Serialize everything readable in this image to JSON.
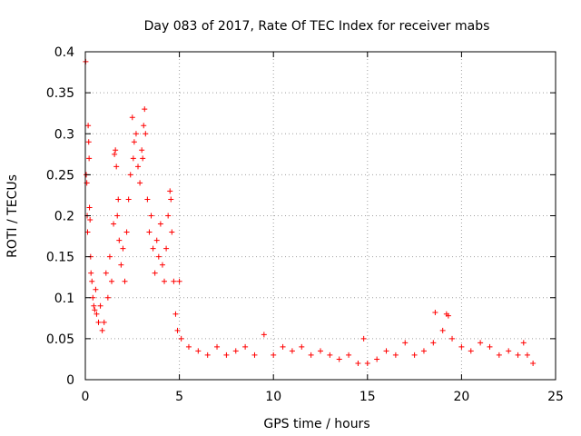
{
  "chart_data": {
    "type": "scatter",
    "title": "Day 083 of 2017, Rate Of TEC Index for receiver mabs",
    "xlabel": "GPS time / hours",
    "ylabel": "ROTI / TECUs",
    "xlim": [
      0,
      25
    ],
    "ylim": [
      0,
      0.4
    ],
    "xticks": [
      "0",
      "5",
      "10",
      "15",
      "20",
      "25"
    ],
    "yticks": [
      "0",
      "0.05",
      "0.1",
      "0.15",
      "0.2",
      "0.25",
      "0.3",
      "0.35",
      "0.4"
    ],
    "grid": true,
    "marker": "+",
    "color": "#ff0000",
    "points": [
      [
        0.02,
        0.388
      ],
      [
        0.05,
        0.25
      ],
      [
        0.08,
        0.24
      ],
      [
        0.1,
        0.2
      ],
      [
        0.12,
        0.18
      ],
      [
        0.15,
        0.31
      ],
      [
        0.18,
        0.29
      ],
      [
        0.2,
        0.27
      ],
      [
        0.22,
        0.21
      ],
      [
        0.25,
        0.195
      ],
      [
        0.28,
        0.15
      ],
      [
        0.3,
        0.13
      ],
      [
        0.35,
        0.12
      ],
      [
        0.4,
        0.1
      ],
      [
        0.45,
        0.09
      ],
      [
        0.5,
        0.085
      ],
      [
        0.55,
        0.11
      ],
      [
        0.6,
        0.08
      ],
      [
        0.7,
        0.07
      ],
      [
        0.8,
        0.09
      ],
      [
        0.9,
        0.06
      ],
      [
        1.0,
        0.07
      ],
      [
        1.1,
        0.13
      ],
      [
        1.2,
        0.1
      ],
      [
        1.3,
        0.15
      ],
      [
        1.4,
        0.12
      ],
      [
        1.5,
        0.19
      ],
      [
        1.55,
        0.275
      ],
      [
        1.6,
        0.28
      ],
      [
        1.65,
        0.26
      ],
      [
        1.7,
        0.2
      ],
      [
        1.75,
        0.22
      ],
      [
        1.8,
        0.17
      ],
      [
        1.9,
        0.14
      ],
      [
        2.0,
        0.16
      ],
      [
        2.1,
        0.12
      ],
      [
        2.2,
        0.18
      ],
      [
        2.3,
        0.22
      ],
      [
        2.4,
        0.25
      ],
      [
        2.5,
        0.32
      ],
      [
        2.55,
        0.27
      ],
      [
        2.6,
        0.29
      ],
      [
        2.7,
        0.3
      ],
      [
        2.8,
        0.26
      ],
      [
        2.9,
        0.24
      ],
      [
        3.0,
        0.28
      ],
      [
        3.05,
        0.27
      ],
      [
        3.1,
        0.31
      ],
      [
        3.15,
        0.33
      ],
      [
        3.2,
        0.3
      ],
      [
        3.3,
        0.22
      ],
      [
        3.4,
        0.18
      ],
      [
        3.5,
        0.2
      ],
      [
        3.6,
        0.16
      ],
      [
        3.7,
        0.13
      ],
      [
        3.8,
        0.17
      ],
      [
        3.9,
        0.15
      ],
      [
        4.0,
        0.19
      ],
      [
        4.1,
        0.14
      ],
      [
        4.2,
        0.12
      ],
      [
        4.3,
        0.16
      ],
      [
        4.4,
        0.2
      ],
      [
        4.5,
        0.23
      ],
      [
        4.55,
        0.22
      ],
      [
        4.6,
        0.18
      ],
      [
        4.7,
        0.12
      ],
      [
        4.8,
        0.08
      ],
      [
        4.9,
        0.06
      ],
      [
        5.0,
        0.12
      ],
      [
        5.1,
        0.05
      ],
      [
        5.5,
        0.04
      ],
      [
        6.0,
        0.035
      ],
      [
        6.5,
        0.03
      ],
      [
        7.0,
        0.04
      ],
      [
        7.5,
        0.03
      ],
      [
        8.0,
        0.035
      ],
      [
        8.5,
        0.04
      ],
      [
        9.0,
        0.03
      ],
      [
        9.5,
        0.055
      ],
      [
        10.0,
        0.03
      ],
      [
        10.5,
        0.04
      ],
      [
        11.0,
        0.035
      ],
      [
        11.5,
        0.04
      ],
      [
        12.0,
        0.03
      ],
      [
        12.5,
        0.035
      ],
      [
        13.0,
        0.03
      ],
      [
        13.5,
        0.025
      ],
      [
        14.0,
        0.03
      ],
      [
        14.5,
        0.02
      ],
      [
        14.8,
        0.05
      ],
      [
        15.0,
        0.02
      ],
      [
        15.5,
        0.025
      ],
      [
        16.0,
        0.035
      ],
      [
        16.5,
        0.03
      ],
      [
        17.0,
        0.045
      ],
      [
        17.5,
        0.03
      ],
      [
        18.0,
        0.035
      ],
      [
        18.5,
        0.045
      ],
      [
        18.6,
        0.082
      ],
      [
        19.0,
        0.06
      ],
      [
        19.2,
        0.08
      ],
      [
        19.3,
        0.078
      ],
      [
        19.5,
        0.05
      ],
      [
        20.0,
        0.04
      ],
      [
        20.5,
        0.035
      ],
      [
        21.0,
        0.045
      ],
      [
        21.5,
        0.04
      ],
      [
        22.0,
        0.03
      ],
      [
        22.5,
        0.035
      ],
      [
        23.0,
        0.03
      ],
      [
        23.3,
        0.045
      ],
      [
        23.5,
        0.03
      ],
      [
        23.8,
        0.02
      ]
    ]
  }
}
